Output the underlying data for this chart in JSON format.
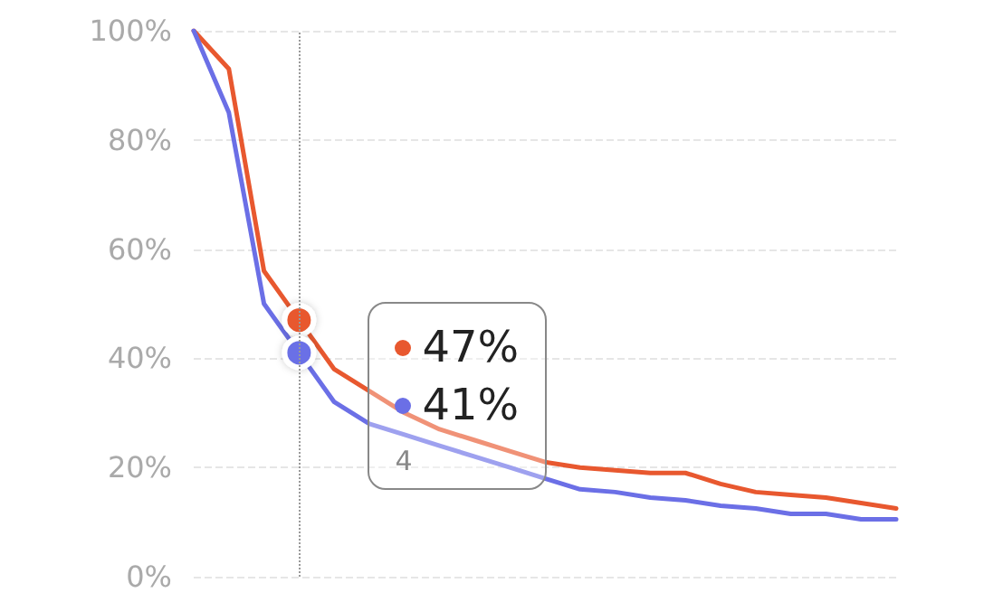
{
  "chart_data": {
    "type": "line",
    "categories": [
      null,
      null,
      null,
      null,
      null,
      null,
      null,
      null,
      null,
      null,
      null,
      null,
      null,
      null,
      null,
      null,
      null,
      null,
      null,
      null,
      null
    ],
    "series": [
      {
        "color": "#e8582f",
        "values": [
          100,
          93,
          56,
          47,
          38,
          34,
          30,
          27,
          25,
          23,
          21,
          20,
          19.5,
          19,
          19,
          17,
          15.5,
          15,
          14.5,
          13.5,
          12.5
        ]
      },
      {
        "color": "#6b6fe6",
        "values": [
          100,
          85,
          50,
          41,
          32,
          28,
          26,
          24,
          22,
          20,
          18,
          16,
          15.5,
          14.5,
          14,
          13,
          12.5,
          11.5,
          11.5,
          10.5,
          10.5
        ]
      }
    ],
    "ylim": [
      0,
      100
    ],
    "yticks": [
      {
        "value": 0,
        "label": "0%"
      },
      {
        "value": 20,
        "label": "20%"
      },
      {
        "value": 40,
        "label": "40%"
      },
      {
        "value": 60,
        "label": "60%"
      },
      {
        "value": 80,
        "label": "80%"
      },
      {
        "value": 100,
        "label": "100%"
      }
    ],
    "tick_labels": "y",
    "grid": "y",
    "marker": "none",
    "line_style": "solid",
    "annotations": [
      "47%",
      "41%",
      "4"
    ]
  }
}
